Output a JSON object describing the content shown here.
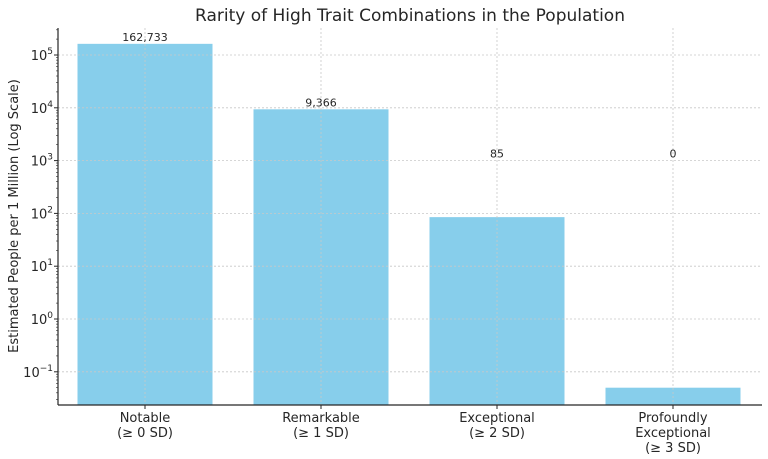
{
  "chart_data": {
    "type": "bar",
    "title": "Rarity of High Trait Combinations in the Population",
    "xlabel": "",
    "ylabel": "Estimated People per 1 Million (Log Scale)",
    "yscale": "log",
    "ylim": [
      0.023,
      350000
    ],
    "grid": true,
    "bar_color": "#87CEEB",
    "categories": [
      [
        "Notable",
        "(≥ 0 SD)"
      ],
      [
        "Remarkable",
        "(≥ 1 SD)"
      ],
      [
        "Exceptional",
        "(≥ 2 SD)"
      ],
      [
        "Profoundly",
        "Exceptional",
        "(≥ 3 SD)"
      ]
    ],
    "category_names": [
      "Notable (≥ 0 SD)",
      "Remarkable (≥ 1 SD)",
      "Exceptional (≥ 2 SD)",
      "Profoundly Exceptional (≥ 3 SD)"
    ],
    "values": [
      162733,
      9366,
      85,
      0.05
    ],
    "data_labels": [
      "162,733",
      "9,366",
      "85",
      "0"
    ],
    "data_label_y_values": [
      162733,
      9366,
      1000,
      1000
    ],
    "yticks": [
      {
        "value": 0.1,
        "base": "10",
        "exp": "−1"
      },
      {
        "value": 1,
        "base": "10",
        "exp": "0"
      },
      {
        "value": 10,
        "base": "10",
        "exp": "1"
      },
      {
        "value": 100,
        "base": "10",
        "exp": "2"
      },
      {
        "value": 1000,
        "base": "10",
        "exp": "3"
      },
      {
        "value": 10000,
        "base": "10",
        "exp": "4"
      },
      {
        "value": 100000,
        "base": "10",
        "exp": "5"
      }
    ]
  }
}
